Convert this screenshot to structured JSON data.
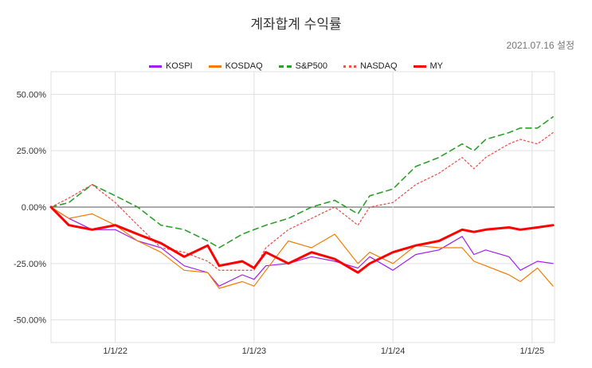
{
  "chart_data": {
    "type": "line",
    "title": "계좌합계 수익률",
    "subtitle": "2021.07.16 설정",
    "xlabel": "",
    "ylabel": "",
    "ylim": [
      -60,
      60
    ],
    "y_ticks": [
      "50.00%",
      "25.00%",
      "0.00%",
      "-25.00%",
      "-50.00%"
    ],
    "y_tick_values": [
      50,
      25,
      0,
      -25,
      -50
    ],
    "x_ticks": [
      "1/1/22",
      "1/1/23",
      "1/1/24",
      "1/1/25"
    ],
    "x_tick_values": [
      "2022-01-01",
      "2023-01-01",
      "2024-01-01",
      "2025-01-01"
    ],
    "x_range": [
      "2021-07-16",
      "2025-03-01"
    ],
    "grid": true,
    "legend_position": "top",
    "series": [
      {
        "name": "KOSPI",
        "color": "#a020f0",
        "style": "solid",
        "x": [
          "2021-07-16",
          "2021-09-01",
          "2021-11-01",
          "2022-01-01",
          "2022-03-01",
          "2022-05-01",
          "2022-07-01",
          "2022-09-01",
          "2022-10-01",
          "2022-12-01",
          "2023-01-01",
          "2023-02-01",
          "2023-04-01",
          "2023-06-01",
          "2023-08-01",
          "2023-10-01",
          "2023-11-01",
          "2024-01-01",
          "2024-03-01",
          "2024-05-01",
          "2024-07-01",
          "2024-08-01",
          "2024-09-01",
          "2024-11-01",
          "2024-12-01",
          "2025-01-15",
          "2025-02-25"
        ],
        "values": [
          0,
          -5,
          -10,
          -10,
          -15,
          -18,
          -26,
          -29,
          -35,
          -30,
          -32,
          -26,
          -25,
          -22,
          -24,
          -27,
          -22,
          -28,
          -21,
          -19,
          -13,
          -21,
          -19,
          -22,
          -28,
          -24,
          -25
        ]
      },
      {
        "name": "KOSDAQ",
        "color": "#f57c00",
        "style": "solid",
        "x": [
          "2021-07-16",
          "2021-09-01",
          "2021-11-01",
          "2022-01-01",
          "2022-03-01",
          "2022-05-01",
          "2022-07-01",
          "2022-09-01",
          "2022-10-01",
          "2022-12-01",
          "2023-01-01",
          "2023-02-01",
          "2023-04-01",
          "2023-06-01",
          "2023-08-01",
          "2023-10-01",
          "2023-11-01",
          "2024-01-01",
          "2024-03-01",
          "2024-05-01",
          "2024-07-01",
          "2024-08-01",
          "2024-09-01",
          "2024-11-01",
          "2024-12-01",
          "2025-01-15",
          "2025-02-25"
        ],
        "values": [
          0,
          -5,
          -3,
          -8,
          -15,
          -20,
          -28,
          -29,
          -36,
          -33,
          -35,
          -28,
          -15,
          -18,
          -12,
          -25,
          -20,
          -25,
          -17,
          -18,
          -18,
          -24,
          -26,
          -30,
          -33,
          -27,
          -35
        ]
      },
      {
        "name": "S&P500",
        "color": "#2ca02c",
        "style": "dashed",
        "x": [
          "2021-07-16",
          "2021-09-01",
          "2021-11-01",
          "2022-01-01",
          "2022-03-01",
          "2022-05-01",
          "2022-07-01",
          "2022-09-01",
          "2022-10-01",
          "2022-12-01",
          "2023-01-01",
          "2023-02-01",
          "2023-04-01",
          "2023-06-01",
          "2023-08-01",
          "2023-10-01",
          "2023-11-01",
          "2024-01-01",
          "2024-03-01",
          "2024-05-01",
          "2024-07-01",
          "2024-08-01",
          "2024-09-01",
          "2024-11-01",
          "2024-12-01",
          "2025-01-15",
          "2025-02-25"
        ],
        "values": [
          0,
          2,
          10,
          5,
          0,
          -8,
          -10,
          -15,
          -18,
          -12,
          -10,
          -8,
          -5,
          0,
          3,
          -3,
          5,
          8,
          18,
          22,
          28,
          25,
          30,
          33,
          35,
          35,
          40
        ]
      },
      {
        "name": "NASDAQ",
        "color": "#ef5350",
        "style": "dotted",
        "x": [
          "2021-07-16",
          "2021-09-01",
          "2021-11-01",
          "2022-01-01",
          "2022-03-01",
          "2022-05-01",
          "2022-07-01",
          "2022-09-01",
          "2022-10-01",
          "2022-12-01",
          "2023-01-01",
          "2023-02-01",
          "2023-04-01",
          "2023-06-01",
          "2023-08-01",
          "2023-10-01",
          "2023-11-01",
          "2024-01-01",
          "2024-03-01",
          "2024-05-01",
          "2024-07-01",
          "2024-08-01",
          "2024-09-01",
          "2024-11-01",
          "2024-12-01",
          "2025-01-15",
          "2025-02-25"
        ],
        "values": [
          0,
          4,
          10,
          2,
          -8,
          -18,
          -20,
          -24,
          -28,
          -28,
          -28,
          -18,
          -10,
          -5,
          0,
          -8,
          0,
          2,
          10,
          15,
          22,
          17,
          22,
          28,
          30,
          28,
          33
        ]
      },
      {
        "name": "MY",
        "color": "#ff0000",
        "style": "solid-bold",
        "x": [
          "2021-07-16",
          "2021-09-01",
          "2021-11-01",
          "2022-01-01",
          "2022-03-01",
          "2022-05-01",
          "2022-07-01",
          "2022-09-01",
          "2022-10-01",
          "2022-12-01",
          "2023-01-01",
          "2023-02-01",
          "2023-04-01",
          "2023-06-01",
          "2023-08-01",
          "2023-10-01",
          "2023-11-01",
          "2024-01-01",
          "2024-03-01",
          "2024-05-01",
          "2024-07-01",
          "2024-08-01",
          "2024-09-01",
          "2024-11-01",
          "2024-12-01",
          "2025-01-15",
          "2025-02-25"
        ],
        "values": [
          0,
          -8,
          -10,
          -8,
          -12,
          -16,
          -22,
          -17,
          -26,
          -24,
          -27,
          -20,
          -25,
          -20,
          -23,
          -29,
          -25,
          -20,
          -17,
          -15,
          -10,
          -11,
          -10,
          -9,
          -10,
          -9,
          -8
        ]
      }
    ]
  }
}
